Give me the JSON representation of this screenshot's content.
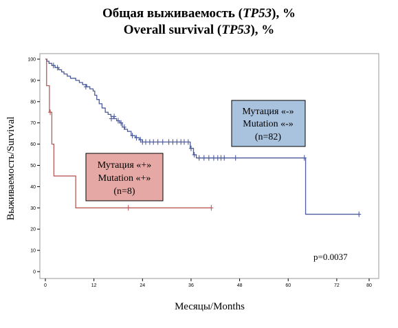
{
  "title": {
    "ru_prefix": "Общая выживаемость (",
    "ru_gene": "TP53",
    "ru_suffix": "), %",
    "en_prefix": "Overall survival (",
    "en_gene": "TP53",
    "en_suffix": "), %"
  },
  "chart_data": {
    "type": "line",
    "subtype": "kaplan-meier",
    "xlabel": "Месяцы/Months",
    "ylabel": "Выживаемость/Survival",
    "xlim": [
      0,
      80
    ],
    "ylim": [
      0,
      100
    ],
    "xticks": [
      0,
      12,
      24,
      36,
      48,
      60,
      72,
      80
    ],
    "yticks": [
      0,
      10,
      20,
      30,
      40,
      50,
      60,
      70,
      80,
      90,
      100
    ],
    "grid": false,
    "annotation": "p=0.0037",
    "colors": {
      "mutation_neg": "#4a5a9a",
      "mutation_pos": "#b85a5a",
      "box_neg": "#a9c2de",
      "box_pos": "#e6a8a4"
    },
    "series": [
      {
        "key": "mutation_neg",
        "label_lines": [
          "Мутация «-»",
          "Mutation «-»",
          "(n=82)"
        ],
        "steps": [
          [
            0,
            100
          ],
          [
            0.4,
            99
          ],
          [
            0.9,
            98
          ],
          [
            1.6,
            97
          ],
          [
            2.4,
            96
          ],
          [
            3.3,
            95
          ],
          [
            4,
            94
          ],
          [
            4.6,
            93
          ],
          [
            5.4,
            92
          ],
          [
            6.2,
            91
          ],
          [
            7.5,
            90
          ],
          [
            8.4,
            89
          ],
          [
            9.2,
            88
          ],
          [
            10.2,
            87
          ],
          [
            11,
            86
          ],
          [
            11.8,
            85
          ],
          [
            12.2,
            83
          ],
          [
            12.7,
            81
          ],
          [
            13.3,
            79
          ],
          [
            14,
            77
          ],
          [
            14.8,
            75
          ],
          [
            15.5,
            74
          ],
          [
            16.2,
            73
          ],
          [
            16.9,
            72
          ],
          [
            17.6,
            71
          ],
          [
            18.4,
            70
          ],
          [
            19,
            68
          ],
          [
            19.6,
            67
          ],
          [
            20.3,
            66
          ],
          [
            21.2,
            64
          ],
          [
            22.2,
            63
          ],
          [
            23.2,
            62
          ],
          [
            24,
            61
          ],
          [
            35.8,
            58
          ],
          [
            36.6,
            55
          ],
          [
            37.3,
            53.5
          ],
          [
            64.3,
            27
          ],
          [
            77.5,
            27
          ]
        ],
        "censored": [
          [
            2,
            97
          ],
          [
            3,
            96
          ],
          [
            10,
            87
          ],
          [
            16.3,
            72
          ],
          [
            17,
            73
          ],
          [
            18,
            71
          ],
          [
            18.7,
            70
          ],
          [
            19.5,
            68
          ],
          [
            21.5,
            64
          ],
          [
            22.5,
            63
          ],
          [
            23.5,
            62
          ],
          [
            24,
            61
          ],
          [
            24.8,
            61
          ],
          [
            25.8,
            61
          ],
          [
            26.7,
            61
          ],
          [
            27.8,
            61
          ],
          [
            29,
            61
          ],
          [
            30.5,
            61
          ],
          [
            31.5,
            61
          ],
          [
            32.5,
            61
          ],
          [
            33.5,
            61
          ],
          [
            34.3,
            61
          ],
          [
            35.3,
            61
          ],
          [
            36,
            58
          ],
          [
            36.8,
            55
          ],
          [
            38,
            53.5
          ],
          [
            39.2,
            53.5
          ],
          [
            40.4,
            53.5
          ],
          [
            41.6,
            53.5
          ],
          [
            42.6,
            53.5
          ],
          [
            43.4,
            53.5
          ],
          [
            44.2,
            53.5
          ],
          [
            47,
            53.5
          ],
          [
            64,
            53.5
          ],
          [
            77.5,
            27
          ]
        ]
      },
      {
        "key": "mutation_pos",
        "label_lines": [
          "Мутация «+»",
          "Mutation «+»",
          "(n=8)"
        ],
        "steps": [
          [
            0,
            100
          ],
          [
            0.3,
            87.5
          ],
          [
            1,
            75
          ],
          [
            1.6,
            60
          ],
          [
            2.1,
            45
          ],
          [
            7.5,
            30
          ],
          [
            41,
            30
          ]
        ],
        "censored": [
          [
            1.2,
            75
          ],
          [
            20.5,
            30
          ],
          [
            41,
            30
          ]
        ]
      }
    ]
  }
}
